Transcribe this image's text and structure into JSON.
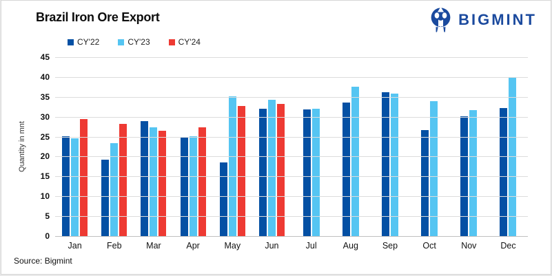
{
  "header": {
    "title": "Brazil Iron Ore Export",
    "brand_name": "BIGMINT"
  },
  "source_note": "Source: Bigmint",
  "colors": {
    "brand_blue": "#1b4a9e",
    "cy22": "#0450a4",
    "cy23": "#55c5f2",
    "cy24": "#ee3a33",
    "gridline": "#dcdcdc",
    "axisline": "#bfbfbf"
  },
  "chart_data": {
    "type": "bar",
    "title": "Brazil Iron Ore Export",
    "xlabel": "",
    "ylabel": "Quantity in mnt",
    "ylim": [
      0,
      45
    ],
    "ytick_step": 5,
    "grid": true,
    "legend_position": "top-left",
    "categories": [
      "Jan",
      "Feb",
      "Mar",
      "Apr",
      "May",
      "Jun",
      "Jul",
      "Aug",
      "Sep",
      "Oct",
      "Nov",
      "Dec"
    ],
    "series": [
      {
        "name": "CY'22",
        "color": "#0450a4",
        "values": [
          25.1,
          19.3,
          28.9,
          24.8,
          18.5,
          32.1,
          31.9,
          33.5,
          36.2,
          26.7,
          30.1,
          32.2
        ]
      },
      {
        "name": "CY'23",
        "color": "#55c5f2",
        "values": [
          24.6,
          23.4,
          27.3,
          25.1,
          35.1,
          34.3,
          32.1,
          37.5,
          35.8,
          33.9,
          31.6,
          39.8
        ]
      },
      {
        "name": "CY'24",
        "color": "#ee3a33",
        "values": [
          29.4,
          28.3,
          26.5,
          27.3,
          32.8,
          33.2,
          null,
          null,
          null,
          null,
          null,
          null
        ]
      }
    ]
  }
}
